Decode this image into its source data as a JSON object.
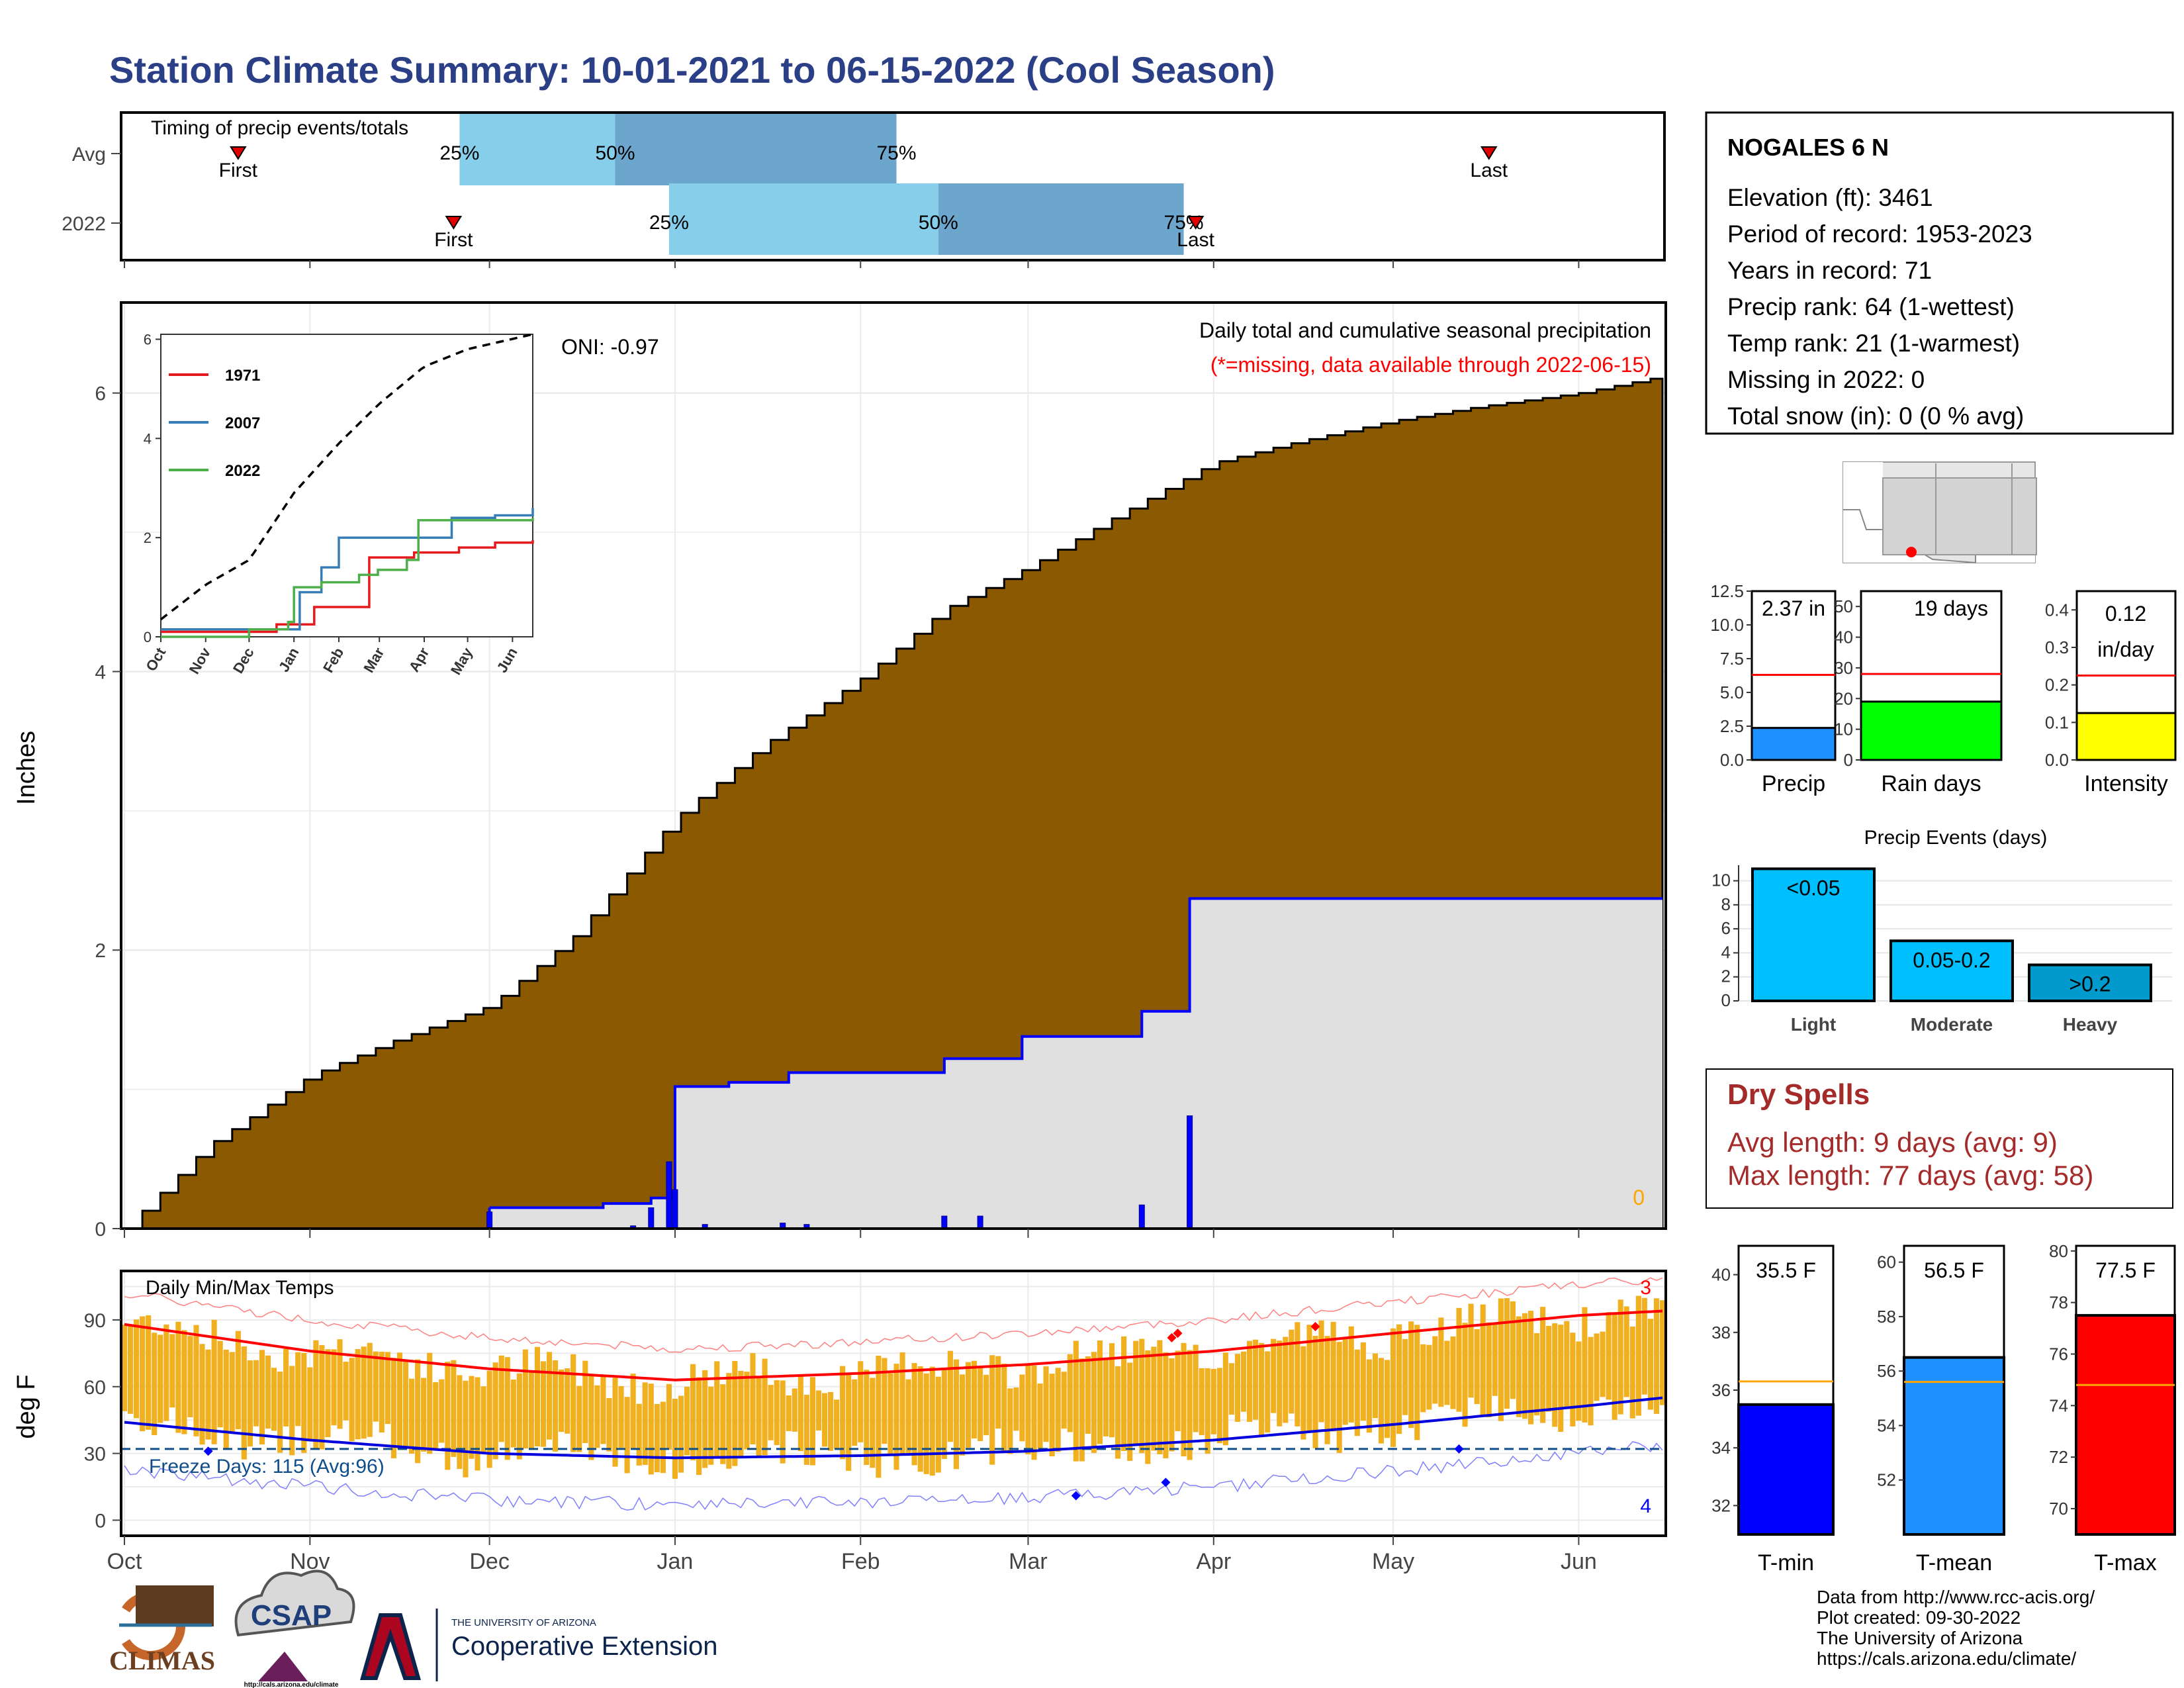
{
  "title": "Station Climate Summary: 10-01-2021 to 06-15-2022 (Cool Season)",
  "colors": {
    "title": "#2B3F86",
    "brown": "#8B5A00",
    "lightgray": "#E0E0E0",
    "precip_blue": "#0000FF",
    "timing_light": "#87CEEB",
    "timing_dark": "#6CA6CD",
    "red": "#FF0000",
    "green": "#00FF00",
    "yellow": "#FFFF00",
    "dodger": "#1E90FF",
    "deepsky": "#00BFFF",
    "heavy": "#009ACD",
    "temp_bar": "#F0B020",
    "orange_line": "#FFA500",
    "dry_red": "#A52A2A",
    "freeze_blue": "#104E8B"
  },
  "months": [
    "Oct",
    "Nov",
    "Dec",
    "Jan",
    "Feb",
    "Mar",
    "Apr",
    "May",
    "Jun"
  ],
  "timing": {
    "title": "Timing of precip events/totals",
    "rows": [
      "Avg",
      "2022"
    ],
    "pct_labels": [
      "25%",
      "50%",
      "75%"
    ],
    "first": "First",
    "last": "Last",
    "avg": {
      "first": "2021-10-20",
      "p25": "2021-11-26",
      "p50": "2021-12-22",
      "p75": "2022-02-07",
      "last": "2022-05-17"
    },
    "y2022": {
      "first": "2021-11-25",
      "p25": "2021-12-31",
      "p50": "2022-02-14",
      "p75": "2022-03-27",
      "last": "2022-03-29"
    }
  },
  "station": {
    "name": "NOGALES 6 N",
    "lines": [
      "Elevation (ft): 3461",
      "Period of record: 1953-2023",
      "Years in record: 71",
      "Precip rank: 64 (1-wettest)",
      "Temp rank: 21 (1-warmest)",
      "Missing in 2022: 0",
      "Total snow (in): 0 (0 % avg)"
    ]
  },
  "main": {
    "ylabel": "Inches",
    "yticks": [
      0,
      2,
      4,
      6
    ],
    "oni": "ONI: -0.97",
    "subtitle": "Daily total and cumulative seasonal precipitation",
    "missing_note": "(*=missing, data available through 2022-06-15)",
    "missing_count": "0"
  },
  "inset": {
    "yticks": [
      0,
      2,
      4,
      6
    ],
    "xticks": [
      "Oct",
      "Nov",
      "Dec",
      "Jan",
      "Feb",
      "Mar",
      "Apr",
      "May",
      "Jun"
    ],
    "legend": [
      {
        "name": "1971",
        "color": "#E41A1C"
      },
      {
        "name": "2007",
        "color": "#377EB8"
      },
      {
        "name": "2022",
        "color": "#4DAF4A"
      }
    ]
  },
  "stats": {
    "precip": {
      "label": "Precip",
      "value_label": "2.37 in",
      "value": 2.37,
      "avg": 6.3,
      "ymax": 12.5,
      "ticks": [
        "0.0",
        "2.5",
        "5.0",
        "7.5",
        "10.0",
        "12.5"
      ]
    },
    "rain_days": {
      "label": "Rain days",
      "value_label": "19 days",
      "value": 19,
      "avg": 28,
      "ymax": 55,
      "ticks": [
        "0",
        "10",
        "20",
        "30",
        "40",
        "50"
      ]
    },
    "intensity": {
      "label": "Intensity",
      "value_label_1": "0.12",
      "value_label_2": "in/day",
      "value": 0.125,
      "avg": 0.225,
      "ymax": 0.45,
      "ticks": [
        "0.0",
        "0.1",
        "0.2",
        "0.3",
        "0.4"
      ]
    }
  },
  "events": {
    "title": "Precip Events (days)",
    "ticks": [
      "0",
      "2",
      "4",
      "6",
      "8",
      "10"
    ],
    "bars": [
      {
        "cat": "Light",
        "label": "<0.05",
        "value": 11
      },
      {
        "cat": "Moderate",
        "label": "0.05-0.2",
        "value": 5
      },
      {
        "cat": "Heavy",
        "label": ">0.2",
        "value": 3
      }
    ]
  },
  "dry": {
    "title": "Dry Spells",
    "avg_line": "Avg length: 9 days (avg: 9)",
    "max_line": "Max length: 77 days (avg: 58)"
  },
  "temps": {
    "title": "Daily Min/Max Temps",
    "ylabel": "deg F",
    "yticks": [
      0,
      30,
      60,
      90
    ],
    "freeze": "Freeze Days: 115 (Avg:96)",
    "record_high_count": "3",
    "record_low_count": "4"
  },
  "temp_stats": {
    "tmin": {
      "label": "T-min",
      "value_label": "35.5 F",
      "value": 35.5,
      "avg": 36.3,
      "ymin": 31,
      "ymax": 41,
      "ticks": [
        "32",
        "34",
        "36",
        "38",
        "40"
      ]
    },
    "tmean": {
      "label": "T-mean",
      "value_label": "56.5 F",
      "value": 56.5,
      "avg": 55.6,
      "ymin": 50,
      "ymax": 60.6,
      "ticks": [
        "52",
        "54",
        "56",
        "58",
        "60"
      ]
    },
    "tmax": {
      "label": "T-max",
      "value_label": "77.5 F",
      "value": 77.5,
      "avg": 74.8,
      "ymin": 69,
      "ymax": 80.2,
      "ticks": [
        "70",
        "72",
        "74",
        "76",
        "78",
        "80"
      ]
    }
  },
  "footer": {
    "lines": [
      "Data from http://www.rcc-acis.org/",
      "Plot created: 09-30-2022",
      "The University of Arizona",
      "https://cals.arizona.edu/climate/"
    ],
    "climas": "CLIMAS",
    "csap": "CSAP",
    "csap_url": "http://cals.arizona.edu/climate",
    "ua_small": "THE UNIVERSITY OF ARIZONA",
    "ua_big": "Cooperative Extension"
  },
  "chart_data": [
    {
      "type": "area",
      "title": "Daily total and cumulative seasonal precipitation",
      "ylabel": "Inches",
      "ylim": [
        0,
        6.65
      ],
      "series": [
        {
          "name": "average cumulative",
          "x": [
            "2021-10-01",
            "2021-10-08",
            "2021-10-15",
            "2021-10-22",
            "2021-11-01",
            "2021-11-15",
            "2021-12-01",
            "2021-12-15",
            "2022-01-01",
            "2022-01-15",
            "2022-02-01",
            "2022-02-15",
            "2022-03-01",
            "2022-03-15",
            "2022-04-01",
            "2022-04-15",
            "2022-05-01",
            "2022-05-15",
            "2022-06-01",
            "2022-06-15"
          ],
          "values": [
            0.0,
            0.3,
            0.6,
            0.8,
            1.1,
            1.35,
            1.6,
            2.1,
            2.95,
            3.45,
            3.95,
            4.45,
            4.75,
            5.1,
            5.5,
            5.65,
            5.8,
            5.9,
            6.0,
            6.12
          ]
        },
        {
          "name": "2022 cumulative",
          "x": [
            "2021-12-01",
            "2021-12-20",
            "2021-12-28",
            "2022-01-01",
            "2022-01-10",
            "2022-01-20",
            "2022-02-15",
            "2022-02-28",
            "2022-03-20",
            "2022-03-28",
            "2022-06-15"
          ],
          "values": [
            0.15,
            0.18,
            0.22,
            1.02,
            1.05,
            1.12,
            1.22,
            1.38,
            1.56,
            2.37,
            2.37
          ]
        },
        {
          "name": "2022 daily",
          "x": [
            "2021-12-01",
            "2021-12-25",
            "2021-12-28",
            "2021-12-31",
            "2022-01-01",
            "2022-01-06",
            "2022-01-19",
            "2022-01-23",
            "2022-02-15",
            "2022-02-21",
            "2022-03-20",
            "2022-03-28"
          ],
          "values": [
            0.12,
            0.02,
            0.15,
            0.48,
            0.28,
            0.03,
            0.04,
            0.03,
            0.09,
            0.09,
            0.17,
            0.81
          ]
        }
      ]
    },
    {
      "type": "line",
      "title": "",
      "ylim": [
        0,
        6.1
      ],
      "series": [
        {
          "name": "1971",
          "x": [
            "2021-10-01",
            "2021-12-20",
            "2022-01-15",
            "2022-02-15",
            "2022-02-22",
            "2022-03-25",
            "2022-04-25",
            "2022-05-20",
            "2022-06-15"
          ],
          "values": [
            0.1,
            0.25,
            0.6,
            0.6,
            1.6,
            1.7,
            1.8,
            1.9,
            1.95
          ]
        },
        {
          "name": "2007",
          "x": [
            "2021-10-01",
            "2021-12-15",
            "2022-01-05",
            "2022-01-20",
            "2022-02-01",
            "2022-02-20",
            "2022-03-25",
            "2022-04-20",
            "2022-05-20",
            "2022-06-15"
          ],
          "values": [
            0.15,
            0.15,
            0.9,
            1.4,
            2.0,
            2.0,
            2.0,
            2.4,
            2.45,
            2.6
          ]
        },
        {
          "name": "2022",
          "x": [
            "2021-10-01",
            "2021-12-01",
            "2021-12-28",
            "2022-01-01",
            "2022-01-20",
            "2022-02-15",
            "2022-02-28",
            "2022-03-20",
            "2022-03-28",
            "2022-06-15"
          ],
          "values": [
            0,
            0.15,
            0.3,
            1.0,
            1.1,
            1.25,
            1.35,
            1.55,
            2.35,
            2.4
          ]
        },
        {
          "name": "average",
          "x": [
            "2021-10-01",
            "2021-11-01",
            "2021-12-01",
            "2022-01-01",
            "2022-02-01",
            "2022-03-01",
            "2022-04-01",
            "2022-05-01",
            "2022-06-15"
          ],
          "values": [
            0.35,
            1.05,
            1.55,
            2.9,
            3.9,
            4.7,
            5.45,
            5.8,
            6.1
          ]
        }
      ]
    },
    {
      "type": "bar",
      "title": "Daily Min/Max Temps",
      "ylabel": "deg F",
      "ylim": [
        -7,
        112
      ],
      "series": [
        {
          "name": "normal max",
          "x": [
            "2021-10-01",
            "2021-11-01",
            "2021-12-01",
            "2022-01-01",
            "2022-02-01",
            "2022-03-01",
            "2022-04-01",
            "2022-05-01",
            "2022-06-01",
            "2022-06-15"
          ],
          "values": [
            88,
            76,
            68,
            63,
            66,
            70,
            76,
            84,
            92,
            94
          ]
        },
        {
          "name": "normal min",
          "x": [
            "2021-10-01",
            "2021-11-01",
            "2021-12-01",
            "2022-01-01",
            "2022-02-01",
            "2022-03-01",
            "2022-04-01",
            "2022-05-01",
            "2022-06-01",
            "2022-06-15"
          ],
          "values": [
            44,
            36,
            30,
            28,
            29,
            31,
            36,
            43,
            51,
            55
          ]
        }
      ]
    },
    {
      "type": "bar",
      "title": "",
      "categories": [
        "Precip",
        "Rain days",
        "Intensity"
      ],
      "series": [
        {
          "name": "2022",
          "values": [
            2.37,
            19,
            0.12
          ]
        },
        {
          "name": "average",
          "values": [
            6.3,
            28,
            0.225
          ]
        }
      ]
    },
    {
      "type": "bar",
      "title": "Precip Events (days)",
      "categories": [
        "Light",
        "Moderate",
        "Heavy"
      ],
      "values": [
        11,
        5,
        3
      ],
      "ylim": [
        0,
        11.3
      ]
    },
    {
      "type": "bar",
      "title": "",
      "categories": [
        "T-min",
        "T-mean",
        "T-max"
      ],
      "series": [
        {
          "name": "2022",
          "values": [
            35.5,
            56.5,
            77.5
          ]
        },
        {
          "name": "average",
          "values": [
            36.3,
            55.6,
            74.8
          ]
        }
      ]
    }
  ]
}
